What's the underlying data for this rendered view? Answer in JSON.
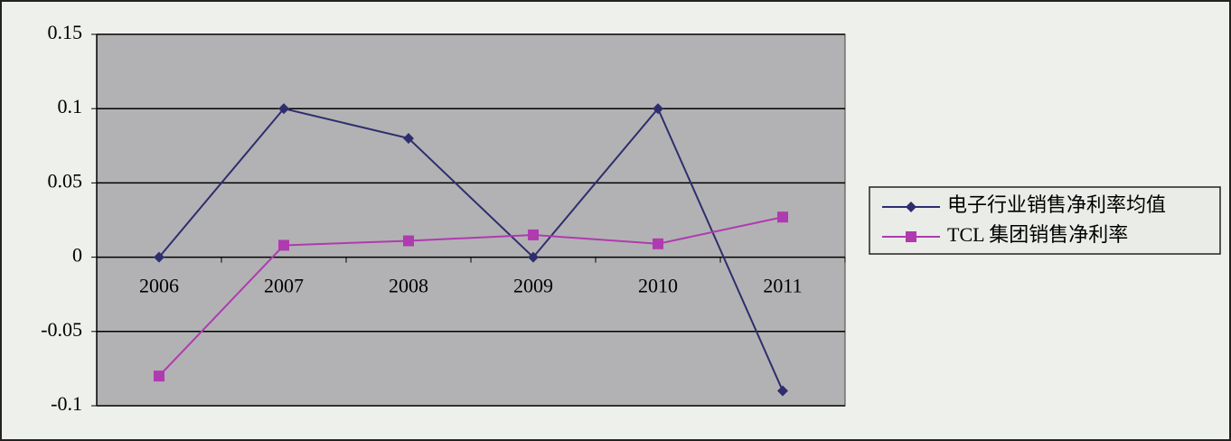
{
  "chart_data": {
    "type": "line",
    "categories": [
      "2006",
      "2007",
      "2008",
      "2009",
      "2010",
      "2011"
    ],
    "series": [
      {
        "name": "电子行业销售净利率均值",
        "color": "#2e2e6e",
        "marker": "diamond",
        "values": [
          0,
          0.1,
          0.08,
          0,
          0.1,
          -0.09
        ]
      },
      {
        "name": "TCL 集团销售净利率",
        "color": "#b03ab0",
        "marker": "square",
        "values": [
          -0.08,
          0.008,
          0.011,
          0.015,
          0.009,
          0.027
        ]
      }
    ],
    "ylim": [
      -0.1,
      0.15
    ],
    "yticks": [
      -0.1,
      -0.05,
      0,
      0.05,
      0.1,
      0.15
    ],
    "grid": true,
    "legend": "right"
  }
}
